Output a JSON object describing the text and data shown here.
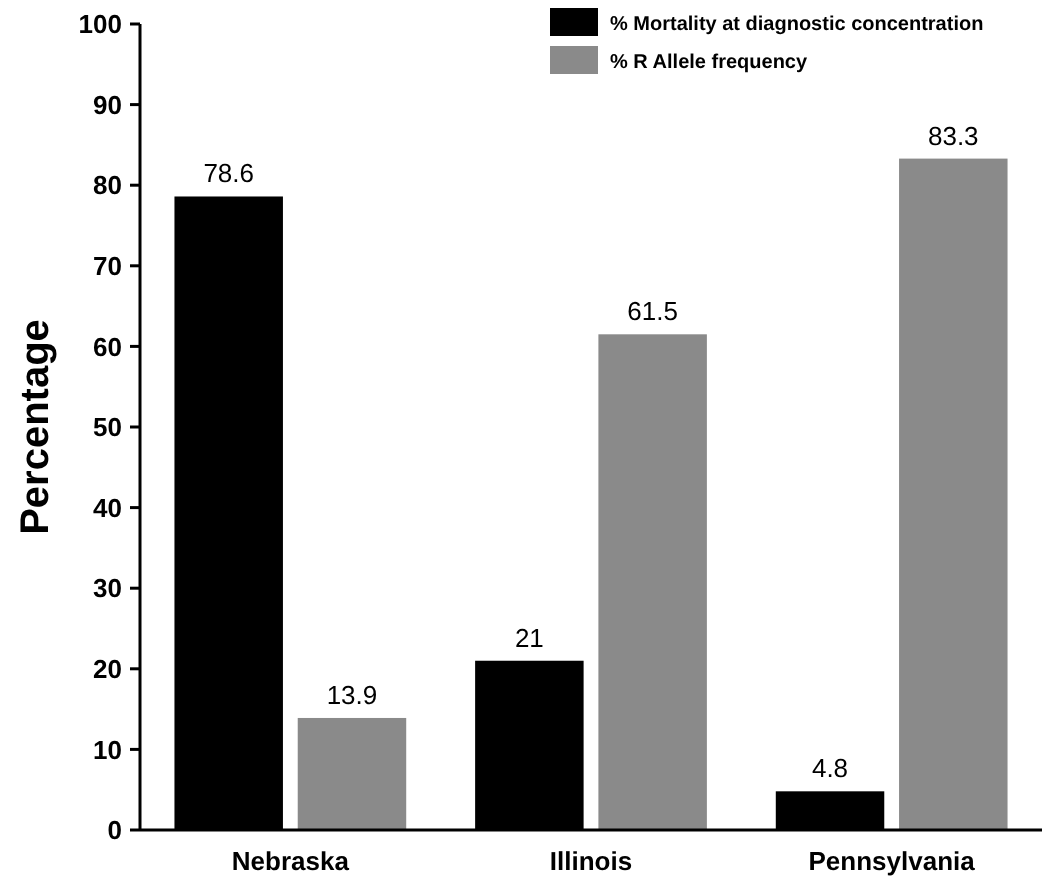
{
  "chart_data": {
    "type": "bar",
    "ylabel": "Percentage",
    "categories": [
      "Nebraska",
      "Illinois",
      "Pennsylvania"
    ],
    "series": [
      {
        "name": "% Mortality at diagnostic concentration",
        "color": "#000000",
        "values": [
          78.6,
          21,
          4.8
        ]
      },
      {
        "name": "% R Allele frequency",
        "color": "#8a8a8a",
        "values": [
          13.9,
          61.5,
          83.3
        ]
      }
    ],
    "ylim": [
      0,
      100
    ],
    "yticks": [
      0,
      10,
      20,
      30,
      40,
      50,
      60,
      70,
      80,
      90,
      100
    ],
    "grid": false,
    "legend": "top right",
    "data_labels": true
  }
}
